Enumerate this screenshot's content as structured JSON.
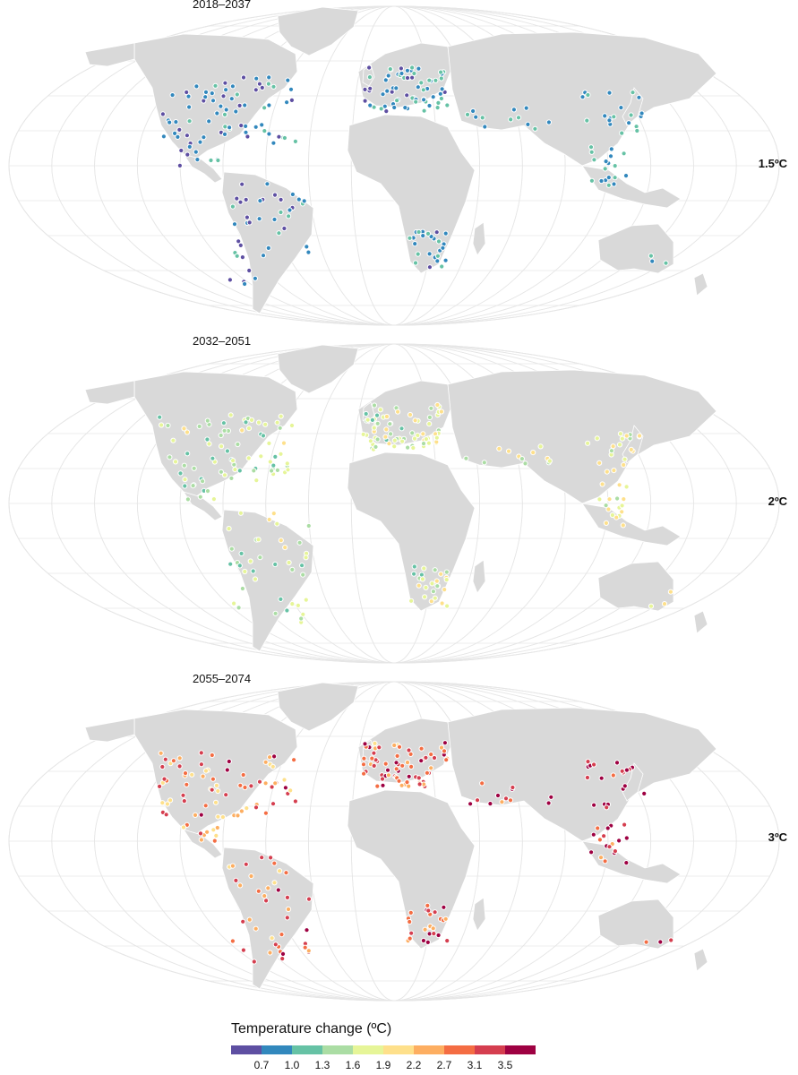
{
  "panels": [
    {
      "period": "2018–2037",
      "scenario": "1.5ºC",
      "palette_index": [
        0,
        1,
        2
      ]
    },
    {
      "period": "2032–2051",
      "scenario": "2ºC",
      "palette_index": [
        2,
        3,
        4,
        5
      ]
    },
    {
      "period": "2055–2074",
      "scenario": "3ºC",
      "palette_index": [
        5,
        6,
        7,
        8,
        9
      ]
    }
  ],
  "legend": {
    "title": "Temperature change (ºC)",
    "ticks": [
      "0.7",
      "1.0",
      "1.3",
      "1.6",
      "1.9",
      "2.2",
      "2.7",
      "3.1",
      "3.5"
    ],
    "colors": [
      "#5e4fa2",
      "#3288bd",
      "#66c2a5",
      "#abdda4",
      "#e6f598",
      "#fee08b",
      "#fdae61",
      "#f46d43",
      "#d53e4f",
      "#9e0142"
    ]
  },
  "map_style": {
    "land_color": "#d9d9d9",
    "ocean_color": "#ffffff",
    "graticule_color": "#e6e6e6",
    "projection": "Robinson-like"
  }
}
